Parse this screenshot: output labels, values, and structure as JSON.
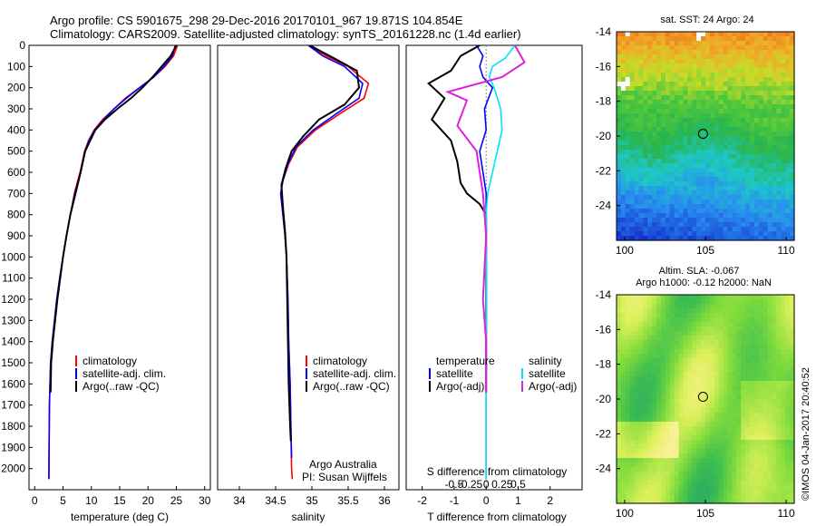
{
  "header": {
    "line1": "Argo profile: CS 5901675_298 29-Dec-2016 20170101_967 19.871S 104.854E",
    "line2": "Climatology: CARS2009. Satellite-adjusted climatology: synTS_20161228.nc (1.4d earlier)"
  },
  "colors": {
    "climatology": "#ff0000",
    "satellite": "#0000ff",
    "argo": "#000000",
    "sat_salinity": "#00e5ee",
    "argo_salinity": "#e020e0"
  },
  "chart_data": [
    {
      "type": "line",
      "name": "temperature-profile",
      "xlabel": "temperature (deg C)",
      "ylabel": "",
      "xlim": [
        -1,
        31
      ],
      "ylim": [
        2100,
        0
      ],
      "xticks": [
        "0",
        "5",
        "10",
        "15",
        "20",
        "25",
        "30"
      ],
      "yticks": [
        "0",
        "100",
        "200",
        "300",
        "400",
        "500",
        "600",
        "700",
        "800",
        "900",
        "1000",
        "1100",
        "1200",
        "1300",
        "1400",
        "1500",
        "1600",
        "1700",
        "1800",
        "1900",
        "2000"
      ],
      "legend": [
        "climatology",
        "satellite-adj. clim.",
        "Argo(..raw -QC)"
      ],
      "series": [
        {
          "name": "climatology",
          "color": "#ff0000",
          "x": [
            25.2,
            24.5,
            23,
            21,
            18.5,
            16,
            14,
            12,
            10.5,
            9.5,
            8.8,
            8,
            7,
            6.3,
            5.6,
            5,
            4.4,
            3.9,
            3.5,
            3.1,
            2.8,
            2.6,
            2.5
          ],
          "y": [
            0,
            50,
            100,
            150,
            200,
            250,
            300,
            350,
            400,
            450,
            500,
            600,
            700,
            800,
            900,
            1000,
            1100,
            1200,
            1300,
            1400,
            1500,
            1700,
            2050
          ]
        },
        {
          "name": "satellite",
          "color": "#0000ff",
          "x": [
            24.8,
            24.3,
            22.8,
            21,
            18.5,
            16.2,
            14,
            12.2,
            10.6,
            9.6,
            8.9,
            8.1,
            7.1,
            6.3,
            5.6,
            5,
            4.4,
            3.9,
            3.5,
            3.1,
            2.8,
            2.6,
            2.5
          ],
          "y": [
            0,
            50,
            100,
            150,
            200,
            250,
            300,
            350,
            400,
            450,
            500,
            600,
            700,
            800,
            900,
            1000,
            1100,
            1200,
            1300,
            1400,
            1500,
            1700,
            2050
          ]
        },
        {
          "name": "argo",
          "color": "#000000",
          "x": [
            25,
            24,
            22.4,
            20.8,
            19,
            17,
            14.6,
            12.4,
            10.7,
            9.8,
            8.9,
            8.1,
            7.2,
            6.3,
            5.6,
            5,
            4.5,
            4,
            3.6,
            3.2,
            2.9,
            2.8
          ],
          "y": [
            0,
            50,
            100,
            150,
            200,
            250,
            300,
            350,
            400,
            450,
            500,
            600,
            700,
            800,
            900,
            1000,
            1100,
            1200,
            1300,
            1400,
            1500,
            1640
          ]
        }
      ]
    },
    {
      "type": "line",
      "name": "salinity-profile",
      "xlabel": "salinity",
      "ylabel": "",
      "xlim": [
        33.7,
        36.2
      ],
      "ylim": [
        2100,
        0
      ],
      "xticks": [
        "34",
        "34.5",
        "35",
        "35.5",
        "36"
      ],
      "legend": [
        "climatology",
        "satellite-adj. clim.",
        "Argo(..raw -QC)"
      ],
      "annotations": [
        "Argo Australia",
        "PI: Susan Wijffels"
      ],
      "series": [
        {
          "name": "climatology",
          "color": "#ff0000",
          "x": [
            34.95,
            35.2,
            35.5,
            35.78,
            35.72,
            35.4,
            35.05,
            34.8,
            34.68,
            34.6,
            34.57,
            34.6,
            34.63,
            34.65,
            34.67,
            34.68,
            34.7,
            34.71,
            34.72,
            34.73
          ],
          "y": [
            0,
            50,
            100,
            180,
            250,
            320,
            400,
            480,
            560,
            640,
            700,
            800,
            900,
            1000,
            1200,
            1400,
            1600,
            1800,
            2000,
            2050
          ]
        },
        {
          "name": "satellite",
          "color": "#0000ff",
          "x": [
            34.95,
            35.15,
            35.45,
            35.7,
            35.65,
            35.35,
            35.02,
            34.78,
            34.67,
            34.6,
            34.57,
            34.6,
            34.63,
            34.65,
            34.67,
            34.68,
            34.7,
            34.71,
            34.72
          ],
          "y": [
            0,
            50,
            100,
            180,
            250,
            320,
            400,
            480,
            560,
            640,
            700,
            800,
            900,
            1000,
            1200,
            1400,
            1600,
            1800,
            1950
          ]
        },
        {
          "name": "argo",
          "color": "#000000",
          "x": [
            34.97,
            35.3,
            35.62,
            35.65,
            35.45,
            35.1,
            34.88,
            34.72,
            34.64,
            34.58,
            34.6,
            34.63,
            34.65,
            34.66,
            34.67,
            34.68,
            34.7,
            34.71
          ],
          "y": [
            0,
            60,
            120,
            200,
            280,
            350,
            430,
            500,
            580,
            660,
            760,
            880,
            1000,
            1200,
            1400,
            1600,
            1800,
            1870
          ]
        }
      ]
    },
    {
      "type": "line",
      "name": "difference-profile",
      "xlabel": "T difference from climatology",
      "x2label": "S difference from climatology",
      "xlim": [
        -2.5,
        3
      ],
      "ylim": [
        2100,
        0
      ],
      "xticks": [
        "-2",
        "-1",
        "0",
        "1",
        "2"
      ],
      "x2ticks": [
        "-0.5",
        "-0.25",
        "0",
        "0.25",
        "0.5"
      ],
      "legend_left_title": "temperature",
      "legend_right_title": "salinity",
      "legend": [
        "satellite",
        "Argo(-adj)",
        "satellite",
        "Argo(-adj)"
      ],
      "series": [
        {
          "name": "T satellite",
          "color": "#0000ff",
          "x": [
            -0.3,
            -0.1,
            -0.2,
            -0.1,
            0.2,
            -0.05,
            0,
            -0.2,
            -0.1,
            0,
            0,
            0,
            0,
            0
          ],
          "y": [
            0,
            50,
            100,
            150,
            200,
            300,
            400,
            500,
            600,
            700,
            900,
            1200,
            1600,
            2050
          ]
        },
        {
          "name": "T argo",
          "color": "#000000",
          "x": [
            -0.2,
            -0.8,
            -1.1,
            -1.8,
            -1.3,
            -1.7,
            -1.1,
            -0.9,
            -0.8,
            -0.6,
            -0.2,
            0,
            0,
            0,
            0
          ],
          "y": [
            0,
            50,
            120,
            180,
            250,
            350,
            450,
            550,
            650,
            700,
            750,
            800,
            1000,
            1200,
            1640
          ]
        },
        {
          "name": "S satellite",
          "color": "#00e5ee",
          "x": [
            0.9,
            0.6,
            0.2,
            0.1,
            0.25,
            0.45,
            0.5,
            0.35,
            0.2,
            0.05,
            0,
            0,
            0,
            0,
            0
          ],
          "y": [
            0,
            60,
            100,
            150,
            200,
            300,
            400,
            500,
            600,
            700,
            800,
            1000,
            1300,
            1700,
            2050
          ]
        },
        {
          "name": "S argo",
          "color": "#e020e0",
          "x": [
            0.9,
            1.2,
            0.5,
            -1.2,
            -0.6,
            -0.9,
            -0.3,
            -0.2,
            -0.1,
            -0.05,
            0,
            -0.1,
            0,
            0
          ],
          "y": [
            0,
            80,
            150,
            220,
            260,
            380,
            500,
            600,
            700,
            800,
            900,
            1200,
            1400,
            1640
          ]
        }
      ]
    },
    {
      "type": "heatmap",
      "name": "sst-map",
      "title": "sat. SST: 24 Argo: 24",
      "xlim": [
        99.5,
        110.5
      ],
      "ylim": [
        -26,
        -14
      ],
      "xticks": [
        "100",
        "105",
        "110"
      ],
      "yticks": [
        "-14",
        "-16",
        "-18",
        "-20",
        "-22",
        "-24"
      ],
      "marker": {
        "lon": 104.854,
        "lat": -19.871
      }
    },
    {
      "type": "heatmap",
      "name": "sla-map",
      "title": "Altim. SLA: -0.067",
      "subtitle": "Argo h1000: -0.12 h2000: NaN",
      "xlim": [
        99.5,
        110.5
      ],
      "ylim": [
        -26,
        -14
      ],
      "xticks": [
        "100",
        "105",
        "110"
      ],
      "yticks": [
        "-14",
        "-16",
        "-18",
        "-20",
        "-22",
        "-24"
      ],
      "marker": {
        "lon": 104.854,
        "lat": -19.871
      }
    }
  ],
  "footer": {
    "credit": "©IMOS 04-Jan-2017 20:40:52"
  }
}
